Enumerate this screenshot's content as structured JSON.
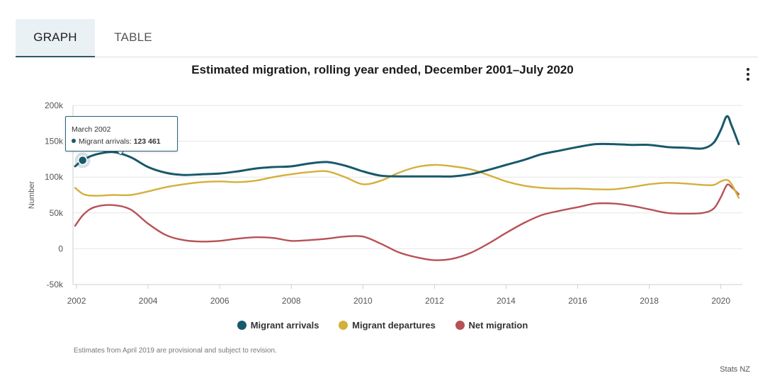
{
  "tabs": {
    "graph": "GRAPH",
    "table": "TABLE"
  },
  "colors": {
    "arrivals": "#18596b",
    "departures": "#d4b03a",
    "net": "#b85155",
    "grid": "#e6e6e6",
    "axis_text": "#555555"
  },
  "tooltip": {
    "date": "March 2002",
    "series": "Migrant arrivals",
    "value": "123 461"
  },
  "legend": [
    {
      "label": "Migrant arrivals",
      "color": "#18596b"
    },
    {
      "label": "Migrant departures",
      "color": "#d4b03a"
    },
    {
      "label": "Net migration",
      "color": "#b85155"
    }
  ],
  "footnote": "Estimates from April 2019 are provisional and subject to revision.",
  "credits": "Stats NZ",
  "chart_data": {
    "type": "line",
    "title": "Estimated migration, rolling year ended, December 2001–July 2020",
    "xlabel": "",
    "ylabel": "Number",
    "xlim": [
      2001.9,
      2020.6
    ],
    "ylim": [
      -50000,
      200000
    ],
    "yticks": [
      -50000,
      0,
      50000,
      100000,
      150000,
      200000
    ],
    "yticklabels": [
      "-50k",
      "0",
      "50k",
      "100k",
      "150k",
      "200k"
    ],
    "xticks": [
      2002,
      2004,
      2006,
      2008,
      2010,
      2012,
      2014,
      2016,
      2018,
      2020
    ],
    "xticklabels": [
      "2002",
      "2004",
      "2006",
      "2008",
      "2010",
      "2012",
      "2014",
      "2016",
      "2018",
      "2020"
    ],
    "highlight": {
      "series": 0,
      "x": 2002.17,
      "y": 123461
    },
    "series": [
      {
        "name": "Migrant arrivals",
        "color": "#18596b",
        "x": [
          2001.96,
          2002.17,
          2002.5,
          2003.0,
          2003.5,
          2004.0,
          2004.5,
          2005.0,
          2005.5,
          2006.0,
          2006.5,
          2007.0,
          2007.5,
          2008.0,
          2008.5,
          2009.0,
          2009.5,
          2010.0,
          2010.5,
          2011.0,
          2011.5,
          2012.0,
          2012.5,
          2013.0,
          2013.5,
          2014.0,
          2014.5,
          2015.0,
          2015.5,
          2016.0,
          2016.5,
          2017.0,
          2017.5,
          2018.0,
          2018.5,
          2019.0,
          2019.5,
          2019.8,
          2020.0,
          2020.17,
          2020.3,
          2020.5
        ],
        "y": [
          115000,
          123461,
          131000,
          135000,
          128000,
          114000,
          106000,
          103000,
          104000,
          105000,
          108000,
          112000,
          114000,
          115000,
          119000,
          121000,
          116000,
          108000,
          102000,
          101000,
          101000,
          101000,
          101000,
          104000,
          110000,
          117000,
          124000,
          132000,
          137000,
          142000,
          146000,
          146000,
          145000,
          145000,
          142000,
          141000,
          140000,
          148000,
          166000,
          185000,
          172000,
          146000
        ]
      },
      {
        "name": "Migrant departures",
        "color": "#d4b03a",
        "x": [
          2001.96,
          2002.2,
          2002.5,
          2003.0,
          2003.5,
          2004.0,
          2004.5,
          2005.0,
          2005.5,
          2006.0,
          2006.5,
          2007.0,
          2007.5,
          2008.0,
          2008.5,
          2009.0,
          2009.5,
          2010.0,
          2010.5,
          2011.0,
          2011.5,
          2012.0,
          2012.5,
          2013.0,
          2013.5,
          2014.0,
          2014.5,
          2015.0,
          2015.5,
          2016.0,
          2016.5,
          2017.0,
          2017.5,
          2018.0,
          2018.5,
          2019.0,
          2019.5,
          2019.8,
          2020.0,
          2020.17,
          2020.3,
          2020.5
        ],
        "y": [
          85000,
          76000,
          74000,
          75000,
          75000,
          80000,
          86000,
          90000,
          93000,
          94000,
          93000,
          95000,
          100000,
          104000,
          107000,
          108000,
          100000,
          90000,
          95000,
          106000,
          114000,
          117000,
          115000,
          111000,
          103000,
          94000,
          88000,
          85000,
          84000,
          84000,
          83000,
          83000,
          86000,
          90000,
          92000,
          91000,
          89000,
          89000,
          94000,
          96000,
          90000,
          71000
        ]
      },
      {
        "name": "Net migration",
        "color": "#b85155",
        "x": [
          2001.96,
          2002.2,
          2002.5,
          2003.0,
          2003.5,
          2004.0,
          2004.5,
          2005.0,
          2005.5,
          2006.0,
          2006.5,
          2007.0,
          2007.5,
          2008.0,
          2008.5,
          2009.0,
          2009.5,
          2010.0,
          2010.5,
          2011.0,
          2011.5,
          2012.0,
          2012.5,
          2013.0,
          2013.5,
          2014.0,
          2014.5,
          2015.0,
          2015.5,
          2016.0,
          2016.5,
          2017.0,
          2017.5,
          2018.0,
          2018.5,
          2019.0,
          2019.5,
          2019.8,
          2020.0,
          2020.17,
          2020.3,
          2020.5
        ],
        "y": [
          32000,
          48000,
          58000,
          61000,
          55000,
          35000,
          19000,
          12000,
          10000,
          11000,
          14000,
          16000,
          15000,
          11000,
          12000,
          14000,
          17000,
          17000,
          7000,
          -5000,
          -12000,
          -16000,
          -14000,
          -6000,
          7000,
          22000,
          36000,
          47000,
          53000,
          58000,
          63000,
          63000,
          60000,
          55000,
          50000,
          49000,
          50000,
          56000,
          72000,
          89000,
          86000,
          76000
        ]
      }
    ]
  }
}
